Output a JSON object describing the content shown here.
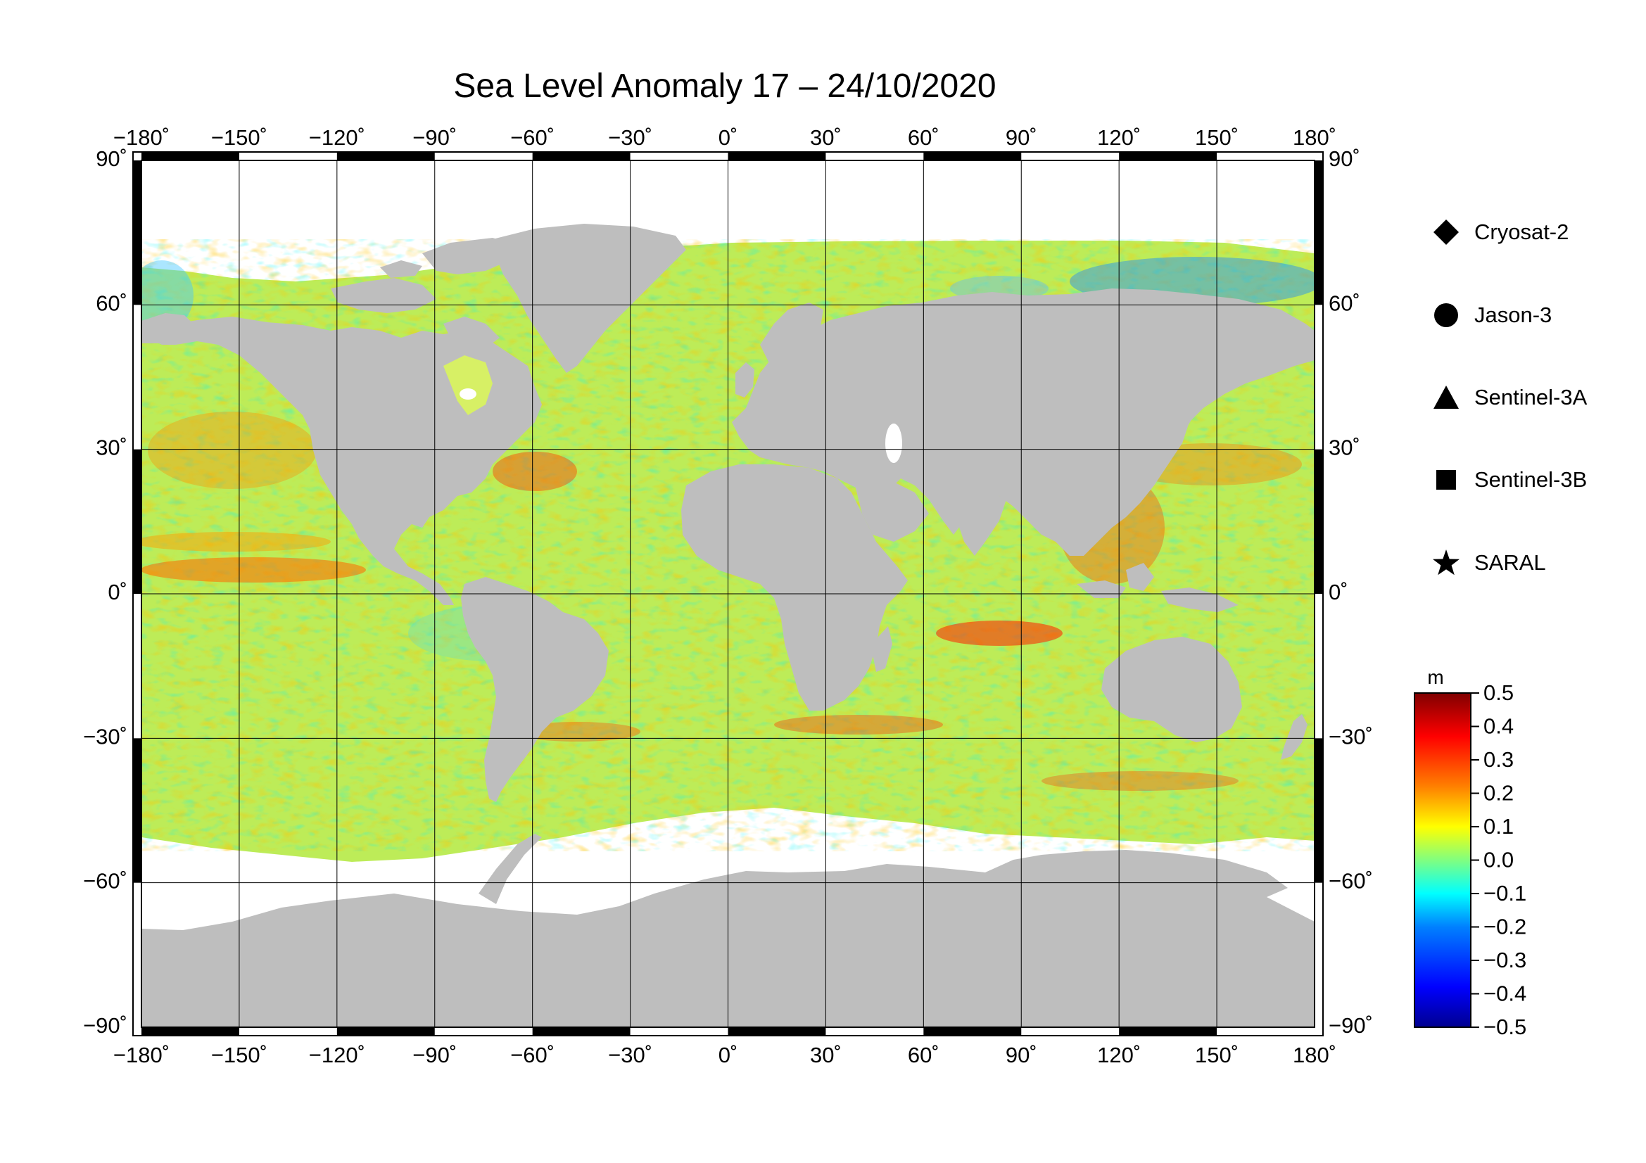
{
  "title": "Sea Level Anomaly 17 – 24/10/2020",
  "map": {
    "projection": "equirectangular",
    "lon_range": [
      -180,
      180
    ],
    "lat_range": [
      -90,
      90
    ],
    "lon_ticks": [
      "−180˚",
      "−150˚",
      "−120˚",
      "−90˚",
      "−60˚",
      "−30˚",
      "0˚",
      "30˚",
      "60˚",
      "90˚",
      "120˚",
      "150˚",
      "180˚"
    ],
    "lat_ticks_left": [
      "90˚",
      "60˚",
      "30˚",
      "0˚",
      "−30˚",
      "−60˚",
      "−90˚"
    ],
    "lat_ticks_right": [
      "90˚",
      "60˚",
      "30˚",
      "0˚",
      "−30˚",
      "−60˚",
      "−90˚"
    ],
    "grid": true,
    "land_color": "#bebebe",
    "ice_color": "#ffffff",
    "background_ocean_color": "#b9ec52"
  },
  "legend": {
    "items": [
      {
        "label": "Cryosat-2",
        "symbol": "diamond-icon"
      },
      {
        "label": "Jason-3",
        "symbol": "circle-icon"
      },
      {
        "label": "Sentinel-3A",
        "symbol": "triangle-icon"
      },
      {
        "label": "Sentinel-3B",
        "symbol": "square-icon"
      },
      {
        "label": "SARAL",
        "symbol": "star-icon"
      }
    ]
  },
  "colorbar": {
    "unit": "m",
    "min": -0.5,
    "max": 0.5,
    "ticks": [
      "0.5",
      "0.4",
      "0.3",
      "0.2",
      "0.1",
      "0.0",
      "−0.1",
      "−0.2",
      "−0.3",
      "−0.4",
      "−0.5"
    ],
    "colors": [
      "#00008f",
      "#0000ff",
      "#0080ff",
      "#00ffff",
      "#80ff80",
      "#ffff00",
      "#ff8000",
      "#ff0000",
      "#800000"
    ]
  }
}
